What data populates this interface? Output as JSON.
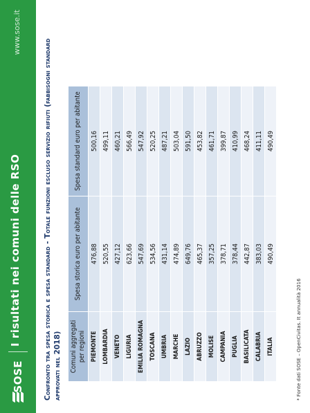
{
  "header": {
    "logo_text": "SOSE",
    "title": "I risultati nei comuni delle RSO",
    "site_url": "www.sose.it"
  },
  "subtitle": "Confronto tra spesa storica e spesa standard - Totale funzioni escluso servizio rifiuti (fabbisogni standard approvati nel 2018)",
  "table": {
    "headers": [
      "Comuni aggregati per regioni",
      "Spesa storica euro per abitante",
      "Spesa standard euro per abitante"
    ],
    "rows": [
      [
        "PIEMONTE",
        "476,88",
        "500,16"
      ],
      [
        "LOMBARDIA",
        "520,55",
        "499,11"
      ],
      [
        "VENETO",
        "427,12",
        "460,21"
      ],
      [
        "LIGURIA",
        "623,66",
        "566,49"
      ],
      [
        "EMILIA ROMAGNA",
        "547,69",
        "547,92"
      ],
      [
        "TOSCANA",
        "534,56",
        "520,25"
      ],
      [
        "UMBRIA",
        "431,14",
        "487,21"
      ],
      [
        "MARCHE",
        "474,89",
        "503,04"
      ],
      [
        "LAZIO",
        "649,76",
        "591,50"
      ],
      [
        "ABRUZZO",
        "465,37",
        "453,82"
      ],
      [
        "MOLISE",
        "357,25",
        "461,71"
      ],
      [
        "CAMPANIA",
        "378,71",
        "399,87"
      ],
      [
        "PUGLIA",
        "378,44",
        "410,99"
      ],
      [
        "BASILICATA",
        "442,87",
        "468,24"
      ],
      [
        "CALABRIA",
        "383,03",
        "411,11"
      ],
      [
        "ITALIA",
        "490,49",
        "490,49"
      ]
    ]
  },
  "footnote": "* Fonte dati SOSE – OpenCivitas. It annualità 2016",
  "colors": {
    "brand_green": "#2a9a43",
    "header_blue": "#aac0da",
    "row_blue": "#dce5f0",
    "title_navy": "#1f3a6b"
  }
}
